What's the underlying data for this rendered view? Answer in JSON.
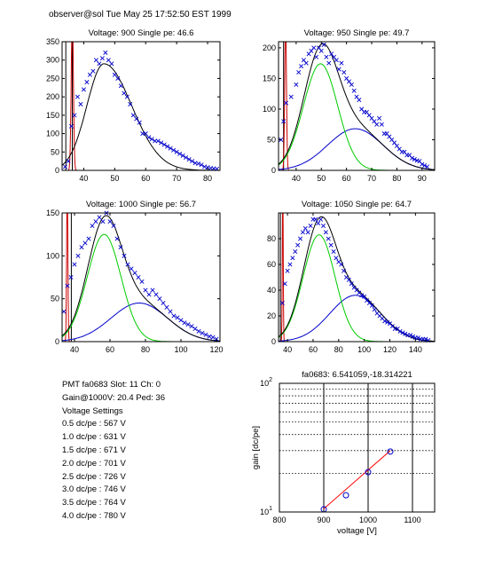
{
  "header": "observer@sol  Tue May 25 17:52:50 EST 1999",
  "info": {
    "pmt": "PMT fa0683 Slot: 11 Ch: 0",
    "gain": "Gain@1000V: 20.4 Ped: 36",
    "settings_title": "Voltage Settings",
    "settings": [
      "0.5 dc/pe : 567 V",
      "1.0 dc/pe : 631 V",
      "1.5 dc/pe : 671 V",
      "2.0 dc/pe : 701 V",
      "2.5 dc/pe : 726 V",
      "3.0 dc/pe : 746 V",
      "3.5 dc/pe : 764 V",
      "4.0 dc/pe : 780 V"
    ]
  },
  "colors": {
    "data": "#0000cc",
    "total_fit": "#000000",
    "single_pe": "#00cc00",
    "double_pe": "#0000cc",
    "pedestal": "#cc0000",
    "gain_fit": "#ff0000"
  },
  "chart_data": [
    {
      "type": "scatter",
      "title": "Voltage: 900 Single pe: 46.6",
      "xlim": [
        33,
        84
      ],
      "ylim": [
        0,
        350
      ],
      "xticks": [
        40,
        50,
        60,
        70,
        80
      ],
      "yticks": [
        0,
        50,
        100,
        150,
        200,
        250,
        300,
        350
      ],
      "fit": {
        "single_pe": {
          "amp": 0,
          "mu": 46.6,
          "sigma": 6.5
        },
        "double_pe": {
          "amp": 0,
          "mu": 60,
          "sigma": 10
        },
        "total_peak": 290,
        "total_mu": 46.5,
        "sigma_left": 5.5,
        "sigma_right": 9.0
      },
      "pedestal_x": 36.3,
      "markers": [
        34.2,
        36.3
      ],
      "points": [
        [
          34,
          10
        ],
        [
          35,
          25
        ],
        [
          36,
          120
        ],
        [
          37,
          150
        ],
        [
          38,
          200
        ],
        [
          39,
          180
        ],
        [
          40,
          220
        ],
        [
          41,
          240
        ],
        [
          42,
          260
        ],
        [
          43,
          270
        ],
        [
          44,
          300
        ],
        [
          45,
          290
        ],
        [
          46,
          305
        ],
        [
          47,
          320
        ],
        [
          48,
          300
        ],
        [
          49,
          290
        ],
        [
          50,
          260
        ],
        [
          51,
          250
        ],
        [
          52,
          230
        ],
        [
          53,
          210
        ],
        [
          54,
          200
        ],
        [
          55,
          180
        ],
        [
          56,
          150
        ],
        [
          57,
          140
        ],
        [
          58,
          130
        ],
        [
          59,
          100
        ],
        [
          60,
          100
        ],
        [
          61,
          90
        ],
        [
          62,
          85
        ],
        [
          63,
          80
        ],
        [
          64,
          80
        ],
        [
          65,
          75
        ],
        [
          66,
          70
        ],
        [
          67,
          65
        ],
        [
          68,
          60
        ],
        [
          69,
          55
        ],
        [
          70,
          50
        ],
        [
          71,
          45
        ],
        [
          72,
          40
        ],
        [
          73,
          35
        ],
        [
          74,
          30
        ],
        [
          75,
          25
        ],
        [
          76,
          20
        ],
        [
          77,
          18
        ],
        [
          78,
          15
        ],
        [
          79,
          10
        ],
        [
          80,
          8
        ],
        [
          81,
          6
        ],
        [
          82,
          5
        ],
        [
          83,
          4
        ]
      ]
    },
    {
      "type": "scatter",
      "title": "Voltage: 950 Single pe: 49.7",
      "xlim": [
        33,
        95
      ],
      "ylim": [
        0,
        210
      ],
      "xticks": [
        40,
        50,
        60,
        70,
        80,
        90
      ],
      "yticks": [
        0,
        50,
        100,
        150,
        200
      ],
      "fit": {
        "single_pe": {
          "amp": 174,
          "mu": 49.7,
          "sigma": 6.8
        },
        "double_pe": {
          "amp": 68,
          "mu": 63.5,
          "sigma": 11.0
        }
      },
      "pedestal_x": 35.8,
      "markers": [
        35.0
      ],
      "points": [
        [
          34,
          50
        ],
        [
          35,
          80
        ],
        [
          36,
          110
        ],
        [
          38,
          120
        ],
        [
          40,
          140
        ],
        [
          41,
          160
        ],
        [
          42,
          170
        ],
        [
          43,
          180
        ],
        [
          44,
          175
        ],
        [
          45,
          190
        ],
        [
          46,
          195
        ],
        [
          47,
          200
        ],
        [
          48,
          185
        ],
        [
          49,
          200
        ],
        [
          50,
          195
        ],
        [
          51,
          205
        ],
        [
          52,
          185
        ],
        [
          53,
          175
        ],
        [
          54,
          190
        ],
        [
          55,
          185
        ],
        [
          56,
          180
        ],
        [
          57,
          165
        ],
        [
          58,
          175
        ],
        [
          59,
          160
        ],
        [
          60,
          150
        ],
        [
          61,
          145
        ],
        [
          62,
          140
        ],
        [
          63,
          130
        ],
        [
          64,
          120
        ],
        [
          65,
          115
        ],
        [
          66,
          100
        ],
        [
          67,
          95
        ],
        [
          68,
          95
        ],
        [
          69,
          90
        ],
        [
          70,
          85
        ],
        [
          71,
          80
        ],
        [
          72,
          75
        ],
        [
          73,
          85
        ],
        [
          74,
          75
        ],
        [
          75,
          60
        ],
        [
          76,
          60
        ],
        [
          77,
          55
        ],
        [
          78,
          50
        ],
        [
          79,
          45
        ],
        [
          80,
          40
        ],
        [
          81,
          35
        ],
        [
          82,
          30
        ],
        [
          83,
          30
        ],
        [
          84,
          25
        ],
        [
          85,
          25
        ],
        [
          86,
          20
        ],
        [
          87,
          18
        ],
        [
          88,
          16
        ],
        [
          89,
          15
        ],
        [
          90,
          10
        ],
        [
          91,
          8
        ],
        [
          92,
          6
        ]
      ]
    },
    {
      "type": "scatter",
      "title": "Voltage: 1000 Single pe: 56.7",
      "xlim": [
        33,
        122
      ],
      "ylim": [
        0,
        150
      ],
      "xticks": [
        40,
        60,
        80,
        100,
        120
      ],
      "yticks": [
        0,
        50,
        100,
        150
      ],
      "fit": {
        "single_pe": {
          "amp": 125,
          "mu": 56.7,
          "sigma": 9.5
        },
        "double_pe": {
          "amp": 45,
          "mu": 76.5,
          "sigma": 16.0
        }
      },
      "pedestal_x": 35.9,
      "markers": [
        38.2
      ],
      "points": [
        [
          34,
          35
        ],
        [
          36,
          65
        ],
        [
          38,
          75
        ],
        [
          40,
          90
        ],
        [
          42,
          100
        ],
        [
          44,
          110
        ],
        [
          46,
          115
        ],
        [
          48,
          120
        ],
        [
          50,
          135
        ],
        [
          52,
          140
        ],
        [
          54,
          145
        ],
        [
          56,
          140
        ],
        [
          58,
          150
        ],
        [
          60,
          140
        ],
        [
          62,
          135
        ],
        [
          64,
          120
        ],
        [
          66,
          110
        ],
        [
          68,
          100
        ],
        [
          70,
          90
        ],
        [
          72,
          85
        ],
        [
          74,
          80
        ],
        [
          76,
          75
        ],
        [
          78,
          70
        ],
        [
          80,
          60
        ],
        [
          82,
          55
        ],
        [
          84,
          60
        ],
        [
          86,
          55
        ],
        [
          88,
          50
        ],
        [
          90,
          45
        ],
        [
          92,
          40
        ],
        [
          94,
          35
        ],
        [
          96,
          30
        ],
        [
          98,
          28
        ],
        [
          100,
          25
        ],
        [
          102,
          22
        ],
        [
          104,
          20
        ],
        [
          106,
          18
        ],
        [
          108,
          15
        ],
        [
          110,
          12
        ],
        [
          112,
          10
        ],
        [
          114,
          8
        ],
        [
          116,
          6
        ],
        [
          118,
          5
        ],
        [
          120,
          3
        ]
      ]
    },
    {
      "type": "scatter",
      "title": "Voltage: 1050 Single pe: 64.7",
      "xlim": [
        33,
        155
      ],
      "ylim": [
        0,
        100
      ],
      "xticks": [
        40,
        60,
        80,
        100,
        120,
        140
      ],
      "yticks": [
        0,
        20,
        40,
        60,
        80
      ],
      "fit": {
        "single_pe": {
          "amp": 83,
          "mu": 64.7,
          "sigma": 12.5
        },
        "double_pe": {
          "amp": 36,
          "mu": 93.0,
          "sigma": 20.0
        }
      },
      "pedestal_x": 36.3,
      "markers": [
        34.5
      ],
      "points": [
        [
          36,
          30
        ],
        [
          38,
          45
        ],
        [
          40,
          55
        ],
        [
          42,
          60
        ],
        [
          44,
          65
        ],
        [
          46,
          70
        ],
        [
          48,
          75
        ],
        [
          50,
          80
        ],
        [
          52,
          85
        ],
        [
          54,
          88
        ],
        [
          56,
          85
        ],
        [
          58,
          90
        ],
        [
          60,
          95
        ],
        [
          62,
          95
        ],
        [
          64,
          92
        ],
        [
          66,
          95
        ],
        [
          68,
          90
        ],
        [
          70,
          85
        ],
        [
          72,
          80
        ],
        [
          74,
          75
        ],
        [
          76,
          70
        ],
        [
          78,
          65
        ],
        [
          80,
          62
        ],
        [
          82,
          60
        ],
        [
          84,
          55
        ],
        [
          86,
          50
        ],
        [
          88,
          48
        ],
        [
          90,
          45
        ],
        [
          92,
          42
        ],
        [
          94,
          40
        ],
        [
          96,
          38
        ],
        [
          98,
          36
        ],
        [
          100,
          35
        ],
        [
          102,
          32
        ],
        [
          104,
          30
        ],
        [
          106,
          28
        ],
        [
          108,
          25
        ],
        [
          110,
          22
        ],
        [
          112,
          20
        ],
        [
          114,
          18
        ],
        [
          116,
          16
        ],
        [
          118,
          15
        ],
        [
          120,
          14
        ],
        [
          122,
          12
        ],
        [
          124,
          10
        ],
        [
          126,
          10
        ],
        [
          128,
          8
        ],
        [
          130,
          7
        ],
        [
          132,
          6
        ],
        [
          134,
          5
        ],
        [
          136,
          5
        ],
        [
          138,
          4
        ],
        [
          140,
          3
        ],
        [
          142,
          3
        ],
        [
          144,
          2
        ],
        [
          146,
          2
        ],
        [
          148,
          2
        ],
        [
          150,
          1
        ]
      ]
    },
    {
      "type": "scatter",
      "title": "fa0683: 6.541059,-18.314221",
      "xlabel": "voltage [V]",
      "ylabel": "gain [dc/pe]",
      "xlim": [
        800,
        1150
      ],
      "ylim": [
        10,
        100
      ],
      "yscale": "log",
      "xticks": [
        800,
        900,
        1000,
        1100
      ],
      "ytick_labels": [
        "10^1",
        "10^2"
      ],
      "vertical_grid": [
        900,
        1000,
        1100
      ],
      "horizontal_grid": [
        20,
        30,
        40,
        50,
        60,
        70,
        80,
        90
      ],
      "points": [
        [
          900,
          10.5
        ],
        [
          950,
          13.5
        ],
        [
          1000,
          20.4
        ],
        [
          1050,
          29.5
        ]
      ],
      "fit_line": [
        [
          900,
          10.6
        ],
        [
          1050,
          30.0
        ]
      ]
    }
  ]
}
